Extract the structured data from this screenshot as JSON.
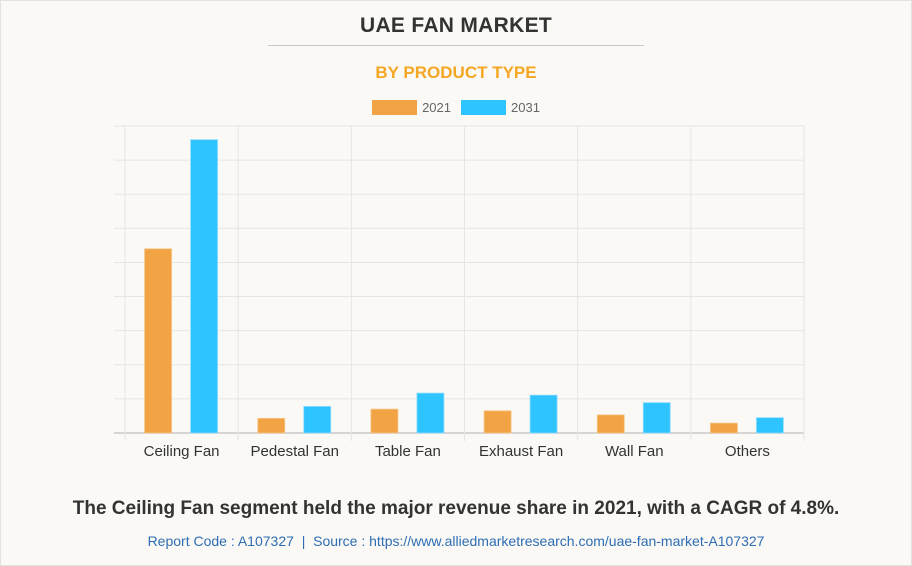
{
  "header": {
    "title": "UAE FAN MARKET",
    "subtitle": "BY PRODUCT TYPE"
  },
  "colors": {
    "series_2021": "#f2a444",
    "series_2031": "#2ec4ff",
    "subtitle": "#f5a623",
    "link": "#2e6db4"
  },
  "chart_data": {
    "type": "bar",
    "title": "UAE FAN MARKET",
    "subtitle": "BY PRODUCT TYPE",
    "xlabel": "",
    "ylabel": "",
    "categories": [
      "Ceiling Fan",
      "Pedestal Fan",
      "Table Fan",
      "Exhaust Fan",
      "Wall Fan",
      "Others"
    ],
    "series": [
      {
        "name": "2021",
        "values": [
          5.4,
          0.43,
          0.7,
          0.65,
          0.53,
          0.29
        ]
      },
      {
        "name": "2031",
        "values": [
          8.6,
          0.78,
          1.17,
          1.11,
          0.89,
          0.45
        ]
      }
    ],
    "ylim": [
      0,
      9
    ],
    "y_ticks_labeled": false,
    "grid": true,
    "legend_position": "top-center"
  },
  "footer": {
    "caption": "The Ceiling Fan segment held the major revenue share in 2021, with a CAGR of 4.8%.",
    "report_code": "Report Code : A107327",
    "separator": "|",
    "source": "Source : https://www.alliedmarketresearch.com/uae-fan-market-A107327"
  }
}
